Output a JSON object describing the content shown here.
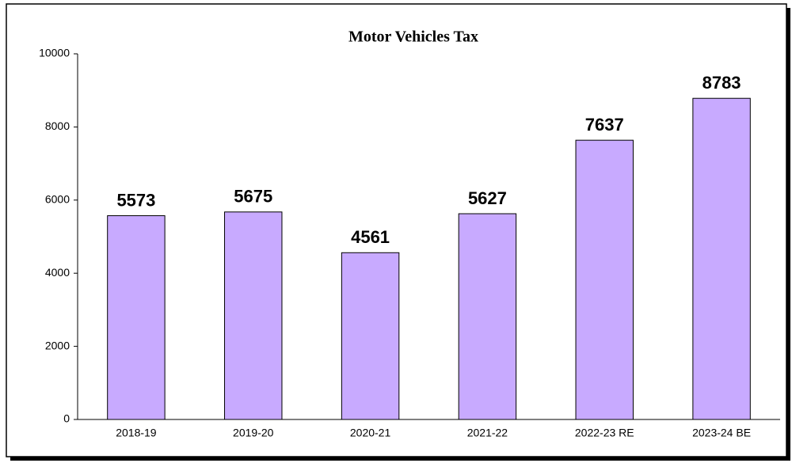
{
  "chart_data": {
    "type": "bar",
    "title": "Motor Vehicles Tax",
    "categories": [
      "2018-19",
      "2019-20",
      "2020-21",
      "2021-22",
      "2022-23 RE",
      "2023-24 BE"
    ],
    "values": [
      5573,
      5675,
      4561,
      5627,
      7637,
      8783
    ],
    "color": "#c8aaff",
    "ylim": [
      0,
      10000
    ],
    "yticks": [
      0,
      2000,
      4000,
      6000,
      8000,
      10000
    ],
    "grid": false
  }
}
